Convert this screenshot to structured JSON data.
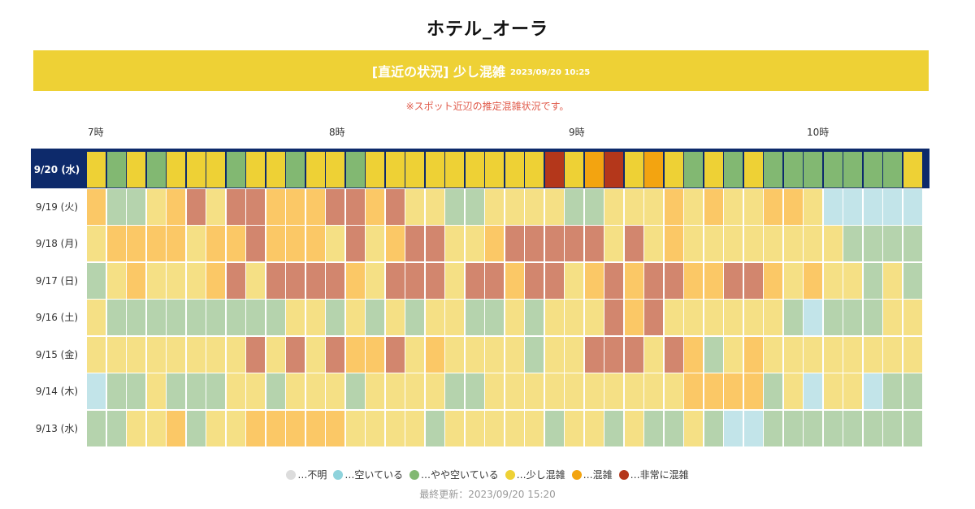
{
  "page": {
    "title": "ホテル_オーラ"
  },
  "banner": {
    "status": "[直近の状況] 少し混雑",
    "timestamp": "2023/09/20 10:25"
  },
  "note": "※スポット近辺の推定混雑状況です。",
  "hours": [
    "7時",
    "8時",
    "9時",
    "10時"
  ],
  "colors": {
    "unknown": "#dcdcdc",
    "empty": "#8fd3dc",
    "somewhat_empty": "#82b872",
    "slightly_crowded": "#eed135",
    "crowded": "#f3a410",
    "very_crowded": "#b4371b",
    "past_empty": "#c2e4e9",
    "past_somewhat_empty": "#b5d3ad",
    "past_slightly_crowded": "#f5e085",
    "past_crowded": "#fbc866",
    "past_very_crowded": "#d2866e"
  },
  "rows": [
    {
      "label": "9/20 (水)",
      "today": true,
      "levels": [
        3,
        2,
        3,
        2,
        3,
        3,
        3,
        2,
        3,
        3,
        2,
        3,
        3,
        2,
        3,
        3,
        3,
        3,
        3,
        3,
        3,
        3,
        3,
        5,
        3,
        4,
        5,
        3,
        4,
        3,
        2,
        3,
        2,
        3,
        2,
        2,
        2,
        2,
        2,
        2,
        2,
        3
      ]
    },
    {
      "label": "9/19 (火)",
      "today": false,
      "levels": [
        4,
        2,
        2,
        3,
        4,
        5,
        3,
        5,
        5,
        4,
        4,
        4,
        5,
        5,
        4,
        5,
        3,
        3,
        2,
        2,
        3,
        3,
        3,
        3,
        2,
        2,
        3,
        3,
        3,
        4,
        3,
        4,
        3,
        3,
        4,
        4,
        3,
        1,
        1,
        1,
        1,
        1
      ]
    },
    {
      "label": "9/18 (月)",
      "today": false,
      "levels": [
        3,
        4,
        4,
        4,
        4,
        3,
        4,
        4,
        5,
        4,
        4,
        4,
        3,
        5,
        3,
        4,
        5,
        5,
        3,
        3,
        4,
        5,
        5,
        5,
        5,
        5,
        3,
        5,
        3,
        4,
        3,
        3,
        3,
        3,
        3,
        3,
        3,
        3,
        2,
        2,
        2,
        2
      ]
    },
    {
      "label": "9/17 (日)",
      "today": false,
      "levels": [
        2,
        3,
        4,
        3,
        3,
        3,
        4,
        5,
        3,
        5,
        5,
        5,
        5,
        4,
        3,
        5,
        5,
        5,
        3,
        5,
        5,
        4,
        5,
        5,
        3,
        4,
        5,
        4,
        5,
        5,
        4,
        4,
        5,
        5,
        4,
        3,
        4,
        3,
        3,
        2,
        3,
        2
      ]
    },
    {
      "label": "9/16 (土)",
      "today": false,
      "levels": [
        3,
        2,
        2,
        2,
        2,
        2,
        2,
        2,
        2,
        2,
        3,
        3,
        2,
        3,
        2,
        3,
        2,
        3,
        3,
        2,
        2,
        3,
        2,
        3,
        3,
        3,
        5,
        4,
        5,
        3,
        3,
        3,
        3,
        3,
        3,
        2,
        1,
        2,
        2,
        2,
        3,
        3
      ]
    },
    {
      "label": "9/15 (金)",
      "today": false,
      "levels": [
        3,
        3,
        3,
        3,
        3,
        3,
        3,
        3,
        5,
        3,
        5,
        3,
        5,
        4,
        4,
        5,
        3,
        4,
        3,
        3,
        3,
        3,
        2,
        3,
        3,
        5,
        5,
        5,
        3,
        5,
        4,
        2,
        3,
        4,
        3,
        3,
        3,
        3,
        3,
        3,
        3,
        3
      ]
    },
    {
      "label": "9/14 (木)",
      "today": false,
      "levels": [
        1,
        2,
        2,
        3,
        2,
        2,
        2,
        3,
        3,
        2,
        3,
        3,
        3,
        2,
        3,
        3,
        3,
        3,
        2,
        2,
        3,
        3,
        3,
        3,
        3,
        3,
        3,
        3,
        3,
        3,
        4,
        4,
        4,
        4,
        2,
        3,
        1,
        3,
        3,
        1,
        2,
        2
      ]
    },
    {
      "label": "9/13 (水)",
      "today": false,
      "levels": [
        2,
        2,
        3,
        3,
        4,
        2,
        3,
        3,
        4,
        4,
        4,
        4,
        4,
        3,
        3,
        3,
        3,
        2,
        3,
        3,
        3,
        3,
        3,
        2,
        3,
        3,
        2,
        3,
        2,
        2,
        3,
        2,
        1,
        1,
        2,
        2,
        2,
        2,
        2,
        2,
        2,
        2
      ]
    }
  ],
  "legend": [
    {
      "key": "unknown",
      "label": "…不明",
      "icon": "gray-dot-icon"
    },
    {
      "key": "empty",
      "label": "…空いている",
      "icon": "cyan-dot-icon"
    },
    {
      "key": "somewhat_empty",
      "label": "…やや空いている",
      "icon": "green-dot-icon"
    },
    {
      "key": "slightly_crowded",
      "label": "…少し混雑",
      "icon": "yellow-dot-icon"
    },
    {
      "key": "crowded",
      "label": "…混雑",
      "icon": "orange-dot-icon"
    },
    {
      "key": "very_crowded",
      "label": "…非常に混雑",
      "icon": "red-dot-icon"
    }
  ],
  "updated": "最終更新：2023/09/20 15:20"
}
